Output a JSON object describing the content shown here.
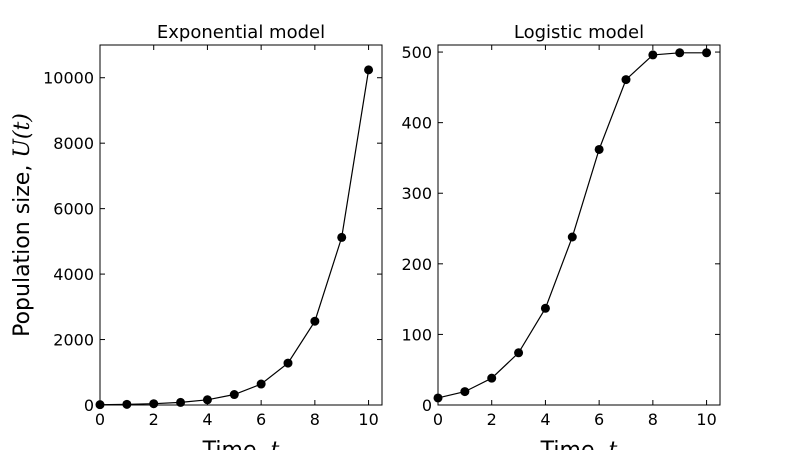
{
  "shared": {
    "ylabel_text": "Population size, ",
    "ylabel_var": "U(t)",
    "xlabel_text": "Time, ",
    "xlabel_var": "t"
  },
  "chart_data": [
    {
      "type": "line",
      "title": "Exponential model",
      "xlabel": "Time, t",
      "ylabel": "Population size, U(t)",
      "xlim": [
        0,
        10.5
      ],
      "ylim": [
        0,
        11000
      ],
      "xticks": [
        0,
        2,
        4,
        6,
        8,
        10
      ],
      "yticks": [
        0,
        2000,
        4000,
        6000,
        8000,
        10000
      ],
      "grid": false,
      "x": [
        0,
        1,
        2,
        3,
        4,
        5,
        6,
        7,
        8,
        9,
        10
      ],
      "series": [
        {
          "values": [
            10,
            20,
            40,
            80,
            160,
            320,
            640,
            1280,
            2560,
            5120,
            10240
          ]
        }
      ]
    },
    {
      "type": "line",
      "title": "Logistic model",
      "xlabel": "Time, t",
      "xlim": [
        0,
        10.5
      ],
      "ylim": [
        0,
        510
      ],
      "xticks": [
        0,
        2,
        4,
        6,
        8,
        10
      ],
      "yticks": [
        0,
        100,
        200,
        300,
        400,
        500
      ],
      "grid": false,
      "x": [
        0,
        1,
        2,
        3,
        4,
        5,
        6,
        7,
        8,
        9,
        10
      ],
      "series": [
        {
          "values": [
            10,
            19,
            38,
            74,
            137,
            238,
            362,
            461,
            496,
            499,
            499
          ]
        }
      ]
    }
  ]
}
